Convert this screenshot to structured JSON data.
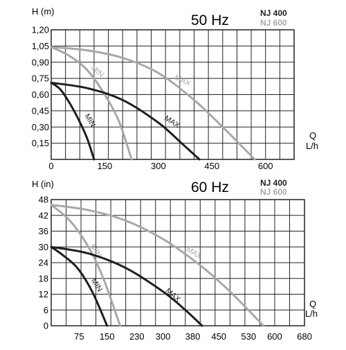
{
  "colors": {
    "nj400": "#1e1e1e",
    "nj600": "#a8a8a8",
    "grid": "#222222"
  },
  "chart_data": [
    {
      "type": "line",
      "frequency": "50 Hz",
      "models": [
        "NJ 400",
        "NJ 600"
      ],
      "ylabel": "H (m)",
      "xlabel": [
        "Q",
        "L/h"
      ],
      "xlim": [
        0,
        680
      ],
      "ylim": [
        0,
        1.2
      ],
      "x_tick_labels": [
        {
          "value": 0,
          "text": "0"
        },
        {
          "value": 150,
          "text": "150"
        },
        {
          "value": 300,
          "text": "300"
        },
        {
          "value": 450,
          "text": "450"
        },
        {
          "value": 600,
          "text": "600"
        }
      ],
      "y_tick_labels": [
        {
          "value": 0.15,
          "text": "0,15"
        },
        {
          "value": 0.3,
          "text": "0,30"
        },
        {
          "value": 0.45,
          "text": "0,45"
        },
        {
          "value": 0.6,
          "text": "0,60"
        },
        {
          "value": 0.75,
          "text": "0,75"
        },
        {
          "value": 0.9,
          "text": "0,90"
        },
        {
          "value": 1.05,
          "text": "1,05"
        },
        {
          "value": 1.2,
          "text": "1,20"
        }
      ],
      "series": [
        {
          "model": "NJ 400",
          "label": "MIN",
          "color": "#1e1e1e",
          "points": [
            [
              0,
              0.71
            ],
            [
              25,
              0.65
            ],
            [
              50,
              0.53
            ],
            [
              75,
              0.38
            ],
            [
              100,
              0.2
            ],
            [
              120,
              0.0
            ]
          ],
          "label_at": [
            103,
            0.35
          ],
          "label_angle": 60
        },
        {
          "model": "NJ 400",
          "label": "MAX",
          "color": "#1e1e1e",
          "points": [
            [
              0,
              0.71
            ],
            [
              100,
              0.66
            ],
            [
              200,
              0.55
            ],
            [
              300,
              0.34
            ],
            [
              365,
              0.15
            ],
            [
              415,
              0.0
            ]
          ],
          "label_at": [
            335,
            0.33
          ],
          "label_angle": 33
        },
        {
          "model": "NJ 600",
          "label": "MIN",
          "color": "#a8a8a8",
          "points": [
            [
              0,
              1.04
            ],
            [
              50,
              0.96
            ],
            [
              100,
              0.83
            ],
            [
              150,
              0.6
            ],
            [
              190,
              0.35
            ],
            [
              225,
              0.0
            ]
          ],
          "label_at": [
            125,
            0.8
          ],
          "label_angle": 40
        },
        {
          "model": "NJ 600",
          "label": "MAX",
          "color": "#a8a8a8",
          "points": [
            [
              0,
              1.04
            ],
            [
              100,
              1.01
            ],
            [
              200,
              0.94
            ],
            [
              300,
              0.8
            ],
            [
              400,
              0.55
            ],
            [
              480,
              0.3
            ],
            [
              570,
              0.0
            ]
          ],
          "label_at": [
            365,
            0.71
          ],
          "label_angle": 25
        }
      ]
    },
    {
      "type": "line",
      "frequency": "60 Hz",
      "models": [
        "NJ 400",
        "NJ 600"
      ],
      "ylabel": "H (in)",
      "xlabel": [
        "Q",
        "L/h"
      ],
      "xlim": [
        0,
        680
      ],
      "ylim": [
        0,
        48
      ],
      "x_tick_labels": [
        {
          "value": 75,
          "text": "75"
        },
        {
          "value": 150,
          "text": "150"
        },
        {
          "value": 230,
          "text": "230"
        },
        {
          "value": 300,
          "text": "300"
        },
        {
          "value": 380,
          "text": "380"
        },
        {
          "value": 450,
          "text": "450"
        },
        {
          "value": 530,
          "text": "530"
        },
        {
          "value": 600,
          "text": "600"
        },
        {
          "value": 680,
          "text": "680"
        }
      ],
      "y_tick_labels": [
        {
          "value": 0,
          "text": "0"
        },
        {
          "value": 6,
          "text": "6"
        },
        {
          "value": 12,
          "text": "12"
        },
        {
          "value": 18,
          "text": "18"
        },
        {
          "value": 24,
          "text": "24"
        },
        {
          "value": 30,
          "text": "30"
        },
        {
          "value": 36,
          "text": "36"
        },
        {
          "value": 42,
          "text": "42"
        },
        {
          "value": 48,
          "text": "48"
        }
      ],
      "series": [
        {
          "model": "NJ 400",
          "label": "MIN",
          "color": "#1e1e1e",
          "points": [
            [
              0,
              30
            ],
            [
              30,
              27
            ],
            [
              70,
              22
            ],
            [
              110,
              13
            ],
            [
              150,
              0
            ]
          ],
          "label_at": [
            117,
            15
          ],
          "label_angle": 58
        },
        {
          "model": "NJ 400",
          "label": "MAX",
          "color": "#1e1e1e",
          "points": [
            [
              0,
              30
            ],
            [
              100,
              27.5
            ],
            [
              200,
              22
            ],
            [
              300,
              13
            ],
            [
              360,
              6
            ],
            [
              405,
              0
            ]
          ],
          "label_at": [
            323,
            11
          ],
          "label_angle": 40
        },
        {
          "model": "NJ 600",
          "label": "MIN",
          "color": "#a8a8a8",
          "points": [
            [
              0,
              46
            ],
            [
              50,
              40
            ],
            [
              100,
              30
            ],
            [
              140,
              18
            ],
            [
              185,
              0
            ]
          ],
          "label_at": [
            115,
            28
          ],
          "label_angle": 55
        },
        {
          "model": "NJ 600",
          "label": "MAX",
          "color": "#a8a8a8",
          "points": [
            [
              0,
              46
            ],
            [
              100,
              44
            ],
            [
              200,
              40
            ],
            [
              300,
              33
            ],
            [
              400,
              23
            ],
            [
              480,
              13
            ],
            [
              570,
              0
            ]
          ],
          "label_at": [
            380,
            27
          ],
          "label_angle": 33
        }
      ]
    }
  ]
}
